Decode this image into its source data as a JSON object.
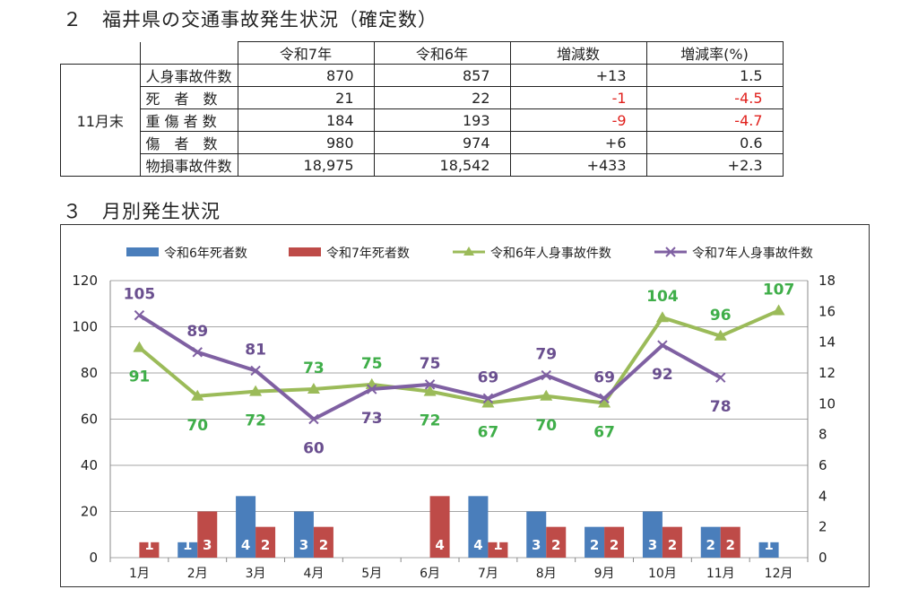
{
  "section2": {
    "title": "２　福井県の交通事故発生状況（確定数）",
    "group_label": "11月末",
    "headers": [
      "令和7年",
      "令和6年",
      "増減数",
      "増減率(%)"
    ],
    "rows": [
      {
        "label": "人身事故件数",
        "r7": "870",
        "r6": "857",
        "diff": "+13",
        "rate": "1.5"
      },
      {
        "label": "死　者　数",
        "r7": "21",
        "r6": "22",
        "diff": "-1",
        "rate": "-4.5"
      },
      {
        "label": "重 傷 者 数",
        "r7": "184",
        "r6": "193",
        "diff": "-9",
        "rate": "-4.7"
      },
      {
        "label": "傷　者　数",
        "r7": "980",
        "r6": "974",
        "diff": "+6",
        "rate": "0.6"
      },
      {
        "label": "物損事故件数",
        "r7": "18,975",
        "r6": "18,542",
        "diff": "+433",
        "rate": "+2.3"
      }
    ]
  },
  "section3": {
    "title": "３　月別発生状況"
  },
  "colors": {
    "bar_r6": "#4a7ebb",
    "bar_r7": "#be4b48",
    "line_r6": "#9bbb59",
    "line_r7": "#7f60a2",
    "label_r6": "#3fae49",
    "label_r7": "#6a4f8f",
    "negative": "#e0201c",
    "grid": "#a6a6a6"
  },
  "chart_data": {
    "type": "bar+line",
    "categories": [
      "1月",
      "2月",
      "3月",
      "4月",
      "5月",
      "6月",
      "7月",
      "8月",
      "9月",
      "10月",
      "11月",
      "12月"
    ],
    "left_axis": {
      "min": 0,
      "max": 120,
      "step": 20,
      "ticks": [
        "0",
        "20",
        "40",
        "60",
        "80",
        "100",
        "120"
      ]
    },
    "right_axis": {
      "min": 0,
      "max": 18,
      "step": 2,
      "ticks": [
        "0",
        "2",
        "4",
        "6",
        "8",
        "10",
        "12",
        "14",
        "16",
        "18"
      ]
    },
    "legend": [
      "令和6年死者数",
      "令和7年死者数",
      "令和6年人身事故件数",
      "令和7年人身事故件数"
    ],
    "bars": [
      {
        "name": "令和6年死者数",
        "axis": "right",
        "values": [
          0,
          1,
          4,
          3,
          0,
          0,
          4,
          3,
          2,
          3,
          2,
          1
        ]
      },
      {
        "name": "令和7年死者数",
        "axis": "right",
        "values": [
          1,
          3,
          2,
          2,
          0,
          4,
          1,
          2,
          2,
          2,
          2,
          null
        ]
      }
    ],
    "lines": [
      {
        "name": "令和6年人身事故件数",
        "axis": "left",
        "marker": "triangle",
        "values": [
          91,
          70,
          72,
          73,
          75,
          72,
          67,
          70,
          67,
          104,
          96,
          107
        ]
      },
      {
        "name": "令和7年人身事故件数",
        "axis": "left",
        "marker": "x",
        "values": [
          105,
          89,
          81,
          60,
          73,
          75,
          69,
          79,
          69,
          92,
          78,
          null
        ]
      }
    ]
  }
}
